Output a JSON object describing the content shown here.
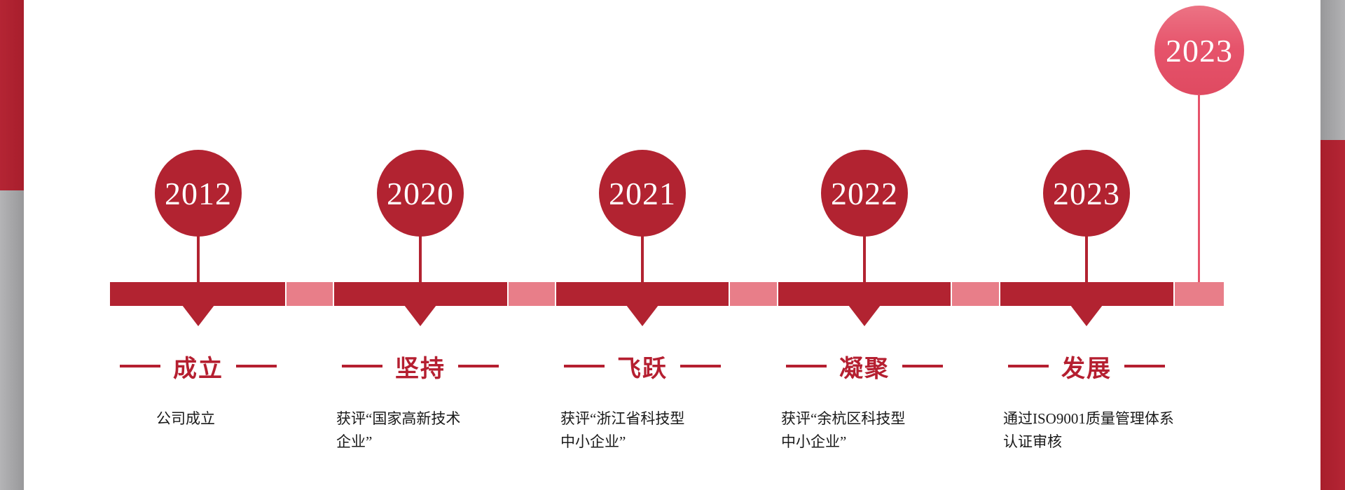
{
  "theme": {
    "dark_red": "#b22331",
    "pink": "#e87e89",
    "light_red": "#e6536b",
    "label_red": "#b51f30",
    "gray": "#a9a9ab",
    "text_dark": "#1a1a1a"
  },
  "floating_milestone": {
    "year": "2023"
  },
  "milestones": [
    {
      "year": "2012",
      "label": "成立",
      "desc_lines": [
        "公司成立"
      ]
    },
    {
      "year": "2020",
      "label": "坚持",
      "desc_lines": [
        "获评“国家高新技术",
        "企业”"
      ]
    },
    {
      "year": "2021",
      "label": "飞跃",
      "desc_lines": [
        "获评“浙江省科技型",
        "中小企业”"
      ]
    },
    {
      "year": "2022",
      "label": "凝聚",
      "desc_lines": [
        "获评“余杭区科技型",
        "中小企业”"
      ]
    },
    {
      "year": "2023",
      "label": "发展",
      "desc_lines": [
        "通过ISO9001质量管理体系",
        "认证审核"
      ]
    }
  ]
}
